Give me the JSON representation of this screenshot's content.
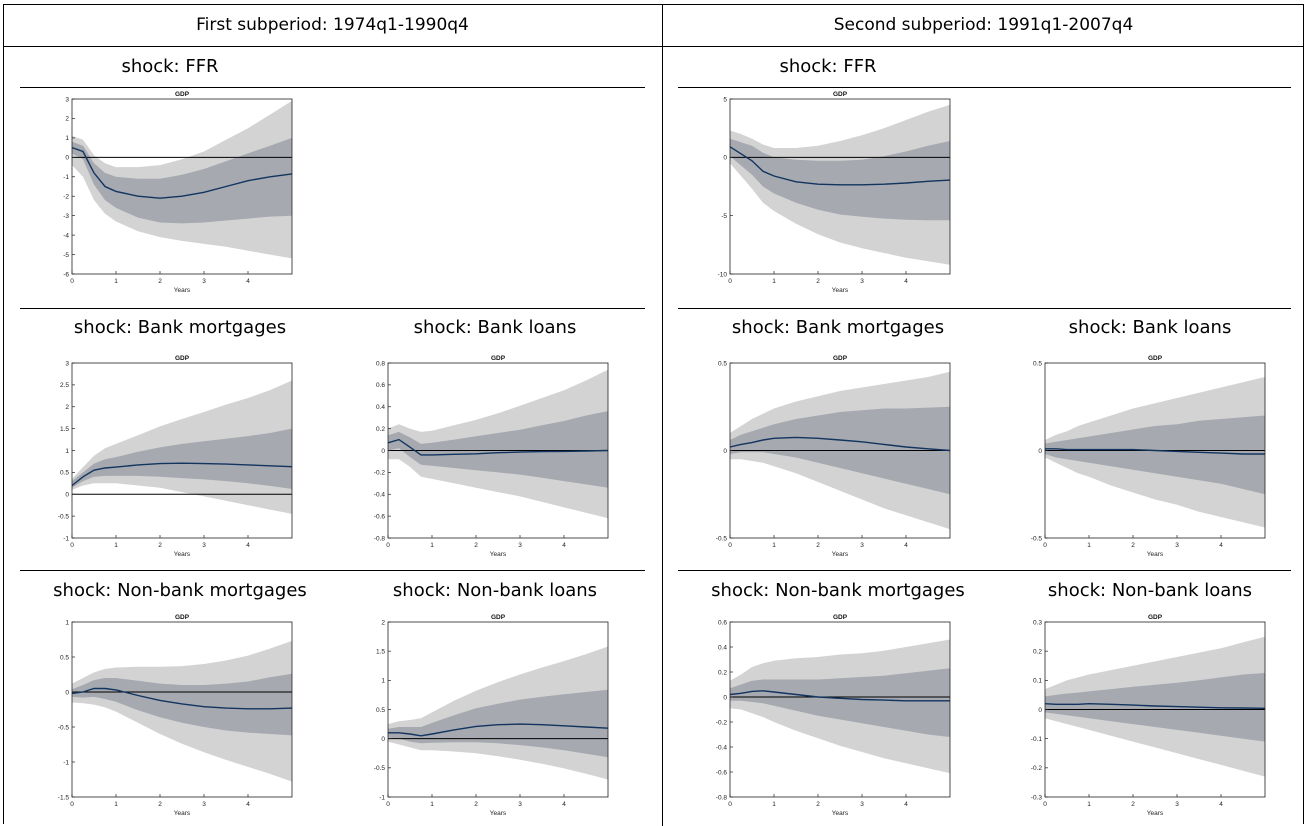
{
  "headers": {
    "left": "First subperiod: 1974q1-1990q4",
    "right": "Second subperiod: 1991q1-2007q4"
  },
  "colors": {
    "band_outer": "#d3d3d3",
    "band_inner": "#a6a9b0",
    "median_line": "#12345f",
    "zero_line": "#000000"
  },
  "chart_data": [
    {
      "id": "p1-ffr",
      "type": "area",
      "shock": "shock: FFR",
      "title": "GDP",
      "xlabel": "Years",
      "xlim": [
        0,
        5
      ],
      "xticks": [
        0,
        1,
        2,
        3,
        4
      ],
      "ylim": [
        -6,
        3
      ],
      "yticks": [
        3,
        2,
        1,
        0,
        -1,
        -2,
        -3,
        -4,
        -5,
        -6
      ],
      "zero": true,
      "x": [
        0,
        0.25,
        0.5,
        0.75,
        1,
        1.5,
        2,
        2.5,
        3,
        3.5,
        4,
        4.5,
        5
      ],
      "median": [
        0.5,
        0.3,
        -0.8,
        -1.5,
        -1.75,
        -2.0,
        -2.1,
        -2.0,
        -1.8,
        -1.5,
        -1.2,
        -1.0,
        -0.85
      ],
      "inner_low": [
        0.2,
        -0.1,
        -1.4,
        -2.2,
        -2.6,
        -3.1,
        -3.35,
        -3.4,
        -3.35,
        -3.25,
        -3.15,
        -3.05,
        -3.0
      ],
      "inner_high": [
        0.8,
        0.6,
        -0.3,
        -0.8,
        -1.0,
        -1.1,
        -1.1,
        -0.9,
        -0.6,
        -0.2,
        0.2,
        0.6,
        1.0
      ],
      "outer_low": [
        -0.4,
        -1.0,
        -2.2,
        -2.9,
        -3.3,
        -3.8,
        -4.1,
        -4.3,
        -4.45,
        -4.6,
        -4.8,
        -5.0,
        -5.2
      ],
      "outer_high": [
        1.1,
        0.9,
        0.1,
        -0.3,
        -0.5,
        -0.5,
        -0.4,
        -0.1,
        0.3,
        0.9,
        1.5,
        2.2,
        2.9
      ]
    },
    {
      "id": "p2-ffr",
      "type": "area",
      "shock": "shock: FFR",
      "title": "GDP",
      "xlabel": "Years",
      "xlim": [
        0,
        5
      ],
      "xticks": [
        0,
        1,
        2,
        3,
        4
      ],
      "ylim": [
        -10,
        5
      ],
      "yticks": [
        5,
        0,
        -5,
        -10
      ],
      "zero": true,
      "x": [
        0,
        0.25,
        0.5,
        0.75,
        1,
        1.5,
        2,
        2.5,
        3,
        3.5,
        4,
        4.5,
        5
      ],
      "median": [
        0.9,
        0.3,
        -0.3,
        -1.2,
        -1.6,
        -2.1,
        -2.3,
        -2.35,
        -2.35,
        -2.3,
        -2.2,
        -2.05,
        -1.95
      ],
      "inner_low": [
        0.1,
        -0.7,
        -1.5,
        -2.5,
        -3.1,
        -3.9,
        -4.5,
        -4.9,
        -5.1,
        -5.25,
        -5.35,
        -5.4,
        -5.4
      ],
      "inner_high": [
        1.6,
        1.3,
        1.0,
        0.4,
        0.0,
        -0.2,
        -0.3,
        -0.3,
        -0.2,
        0.1,
        0.5,
        1.0,
        1.4
      ],
      "outer_low": [
        -0.5,
        -1.6,
        -2.7,
        -3.9,
        -4.6,
        -5.7,
        -6.6,
        -7.3,
        -7.8,
        -8.2,
        -8.6,
        -8.9,
        -9.2
      ],
      "outer_high": [
        2.3,
        2.0,
        1.6,
        1.1,
        0.8,
        0.8,
        1.0,
        1.4,
        1.9,
        2.5,
        3.2,
        3.9,
        4.5
      ]
    },
    {
      "id": "p1-bm",
      "type": "area",
      "shock": "shock: Bank mortgages",
      "title": "GDP",
      "xlabel": "Years",
      "xlim": [
        0,
        5
      ],
      "xticks": [
        0,
        1,
        2,
        3,
        4
      ],
      "ylim": [
        -1,
        3
      ],
      "yticks": [
        3,
        2.5,
        2,
        1.5,
        1,
        0.5,
        0,
        -0.5,
        -1
      ],
      "zero": true,
      "x": [
        0,
        0.25,
        0.5,
        0.75,
        1,
        1.5,
        2,
        2.5,
        3,
        3.5,
        4,
        4.5,
        5
      ],
      "median": [
        0.2,
        0.4,
        0.55,
        0.6,
        0.62,
        0.67,
        0.7,
        0.71,
        0.7,
        0.69,
        0.67,
        0.65,
        0.63
      ],
      "inner_low": [
        0.15,
        0.3,
        0.4,
        0.42,
        0.42,
        0.42,
        0.4,
        0.37,
        0.34,
        0.3,
        0.25,
        0.19,
        0.12
      ],
      "inner_high": [
        0.3,
        0.5,
        0.7,
        0.8,
        0.85,
        0.97,
        1.07,
        1.15,
        1.21,
        1.27,
        1.33,
        1.4,
        1.5
      ],
      "outer_low": [
        0.1,
        0.2,
        0.25,
        0.25,
        0.25,
        0.2,
        0.15,
        0.05,
        -0.05,
        -0.15,
        -0.25,
        -0.35,
        -0.45
      ],
      "outer_high": [
        0.35,
        0.62,
        0.88,
        1.05,
        1.15,
        1.35,
        1.55,
        1.72,
        1.88,
        2.05,
        2.2,
        2.38,
        2.6
      ]
    },
    {
      "id": "p1-bl",
      "type": "area",
      "shock": "shock: Bank loans",
      "title": "GDP",
      "xlabel": "Years",
      "xlim": [
        0,
        5
      ],
      "xticks": [
        0,
        1,
        2,
        3,
        4
      ],
      "ylim": [
        -0.8,
        0.8
      ],
      "yticks": [
        0.8,
        0.6,
        0.4,
        0.2,
        0,
        -0.2,
        -0.4,
        -0.6,
        -0.8
      ],
      "zero": true,
      "x": [
        0,
        0.25,
        0.5,
        0.75,
        1,
        1.5,
        2,
        2.5,
        3,
        3.5,
        4,
        4.5,
        5
      ],
      "median": [
        0.07,
        0.1,
        0.03,
        -0.04,
        -0.04,
        -0.035,
        -0.03,
        -0.02,
        -0.015,
        -0.01,
        -0.008,
        -0.005,
        0.0
      ],
      "inner_low": [
        0.0,
        0.02,
        -0.06,
        -0.13,
        -0.14,
        -0.16,
        -0.18,
        -0.2,
        -0.22,
        -0.25,
        -0.28,
        -0.31,
        -0.34
      ],
      "inner_high": [
        0.14,
        0.17,
        0.12,
        0.06,
        0.07,
        0.1,
        0.13,
        0.16,
        0.19,
        0.23,
        0.27,
        0.32,
        0.36
      ],
      "outer_low": [
        -0.08,
        -0.08,
        -0.15,
        -0.24,
        -0.26,
        -0.3,
        -0.34,
        -0.38,
        -0.42,
        -0.47,
        -0.52,
        -0.57,
        -0.62
      ],
      "outer_high": [
        0.2,
        0.24,
        0.2,
        0.17,
        0.18,
        0.23,
        0.28,
        0.34,
        0.41,
        0.48,
        0.55,
        0.64,
        0.74
      ]
    },
    {
      "id": "p2-bm",
      "type": "area",
      "shock": "shock: Bank mortgages",
      "title": "GDP",
      "xlabel": "Years",
      "xlim": [
        0,
        5
      ],
      "xticks": [
        0,
        1,
        2,
        3,
        4
      ],
      "ylim": [
        -0.5,
        0.5
      ],
      "yticks": [
        0.5,
        0,
        -0.5
      ],
      "zero": true,
      "x": [
        0,
        0.25,
        0.5,
        0.75,
        1,
        1.5,
        2,
        2.5,
        3,
        3.5,
        4,
        4.5,
        5
      ],
      "median": [
        0.02,
        0.035,
        0.045,
        0.06,
        0.07,
        0.075,
        0.07,
        0.06,
        0.05,
        0.035,
        0.02,
        0.01,
        0.0
      ],
      "inner_low": [
        -0.02,
        -0.01,
        -0.01,
        -0.01,
        -0.02,
        -0.04,
        -0.07,
        -0.1,
        -0.13,
        -0.16,
        -0.19,
        -0.22,
        -0.25
      ],
      "inner_high": [
        0.06,
        0.09,
        0.11,
        0.13,
        0.15,
        0.18,
        0.2,
        0.22,
        0.23,
        0.24,
        0.24,
        0.245,
        0.25
      ],
      "outer_low": [
        -0.05,
        -0.05,
        -0.06,
        -0.07,
        -0.09,
        -0.13,
        -0.18,
        -0.23,
        -0.28,
        -0.33,
        -0.37,
        -0.41,
        -0.45
      ],
      "outer_high": [
        0.1,
        0.14,
        0.18,
        0.21,
        0.24,
        0.28,
        0.31,
        0.34,
        0.36,
        0.38,
        0.4,
        0.42,
        0.45
      ]
    },
    {
      "id": "p2-bl",
      "type": "area",
      "shock": "shock: Bank loans",
      "title": "GDP",
      "xlabel": "Years",
      "xlim": [
        0,
        5
      ],
      "xticks": [
        0,
        1,
        2,
        3,
        4
      ],
      "ylim": [
        -0.5,
        0.5
      ],
      "yticks": [
        0.5,
        0,
        -0.5
      ],
      "zero": true,
      "x": [
        0,
        0.25,
        0.5,
        0.75,
        1,
        1.5,
        2,
        2.5,
        3,
        3.5,
        4,
        4.5,
        5
      ],
      "median": [
        0.01,
        0.01,
        0.005,
        0.005,
        0.005,
        0.005,
        0.005,
        0.0,
        -0.005,
        -0.01,
        -0.015,
        -0.02,
        -0.02
      ],
      "inner_low": [
        -0.02,
        -0.04,
        -0.05,
        -0.06,
        -0.07,
        -0.09,
        -0.11,
        -0.13,
        -0.15,
        -0.17,
        -0.19,
        -0.22,
        -0.25
      ],
      "inner_high": [
        0.04,
        0.05,
        0.06,
        0.07,
        0.08,
        0.1,
        0.12,
        0.14,
        0.15,
        0.17,
        0.18,
        0.19,
        0.2
      ],
      "outer_low": [
        -0.04,
        -0.07,
        -0.1,
        -0.13,
        -0.15,
        -0.2,
        -0.24,
        -0.28,
        -0.31,
        -0.35,
        -0.38,
        -0.41,
        -0.44
      ],
      "outer_high": [
        0.06,
        0.09,
        0.11,
        0.14,
        0.16,
        0.2,
        0.24,
        0.27,
        0.3,
        0.33,
        0.36,
        0.39,
        0.42
      ]
    },
    {
      "id": "p1-nbm",
      "type": "area",
      "shock": "shock: Non-bank mortgages",
      "title": "GDP",
      "xlabel": "Years",
      "xlim": [
        0,
        5
      ],
      "xticks": [
        0,
        1,
        2,
        3,
        4
      ],
      "ylim": [
        -1.5,
        1
      ],
      "yticks": [
        1,
        0.5,
        0,
        -0.5,
        -1,
        -1.5
      ],
      "zero": true,
      "x": [
        0,
        0.25,
        0.5,
        0.75,
        1,
        1.5,
        2,
        2.5,
        3,
        3.5,
        4,
        4.5,
        5
      ],
      "median": [
        -0.02,
        0.0,
        0.05,
        0.05,
        0.03,
        -0.05,
        -0.12,
        -0.17,
        -0.21,
        -0.23,
        -0.24,
        -0.24,
        -0.23
      ],
      "inner_low": [
        -0.07,
        -0.08,
        -0.07,
        -0.1,
        -0.14,
        -0.26,
        -0.36,
        -0.44,
        -0.5,
        -0.55,
        -0.58,
        -0.6,
        -0.62
      ],
      "inner_high": [
        0.04,
        0.1,
        0.17,
        0.2,
        0.2,
        0.16,
        0.12,
        0.1,
        0.1,
        0.12,
        0.15,
        0.21,
        0.26
      ],
      "outer_low": [
        -0.15,
        -0.16,
        -0.18,
        -0.22,
        -0.28,
        -0.44,
        -0.6,
        -0.74,
        -0.86,
        -0.97,
        -1.07,
        -1.17,
        -1.28
      ],
      "outer_high": [
        0.12,
        0.2,
        0.28,
        0.33,
        0.35,
        0.36,
        0.36,
        0.37,
        0.4,
        0.45,
        0.52,
        0.62,
        0.73
      ]
    },
    {
      "id": "p1-nbl",
      "type": "area",
      "shock": "shock: Non-bank loans",
      "title": "GDP",
      "xlabel": "Years",
      "xlim": [
        0,
        5
      ],
      "xticks": [
        0,
        1,
        2,
        3,
        4
      ],
      "ylim": [
        -1,
        2
      ],
      "yticks": [
        2,
        1.5,
        1,
        0.5,
        0,
        -0.5,
        -1
      ],
      "zero": true,
      "x": [
        0,
        0.25,
        0.5,
        0.75,
        1,
        1.5,
        2,
        2.5,
        3,
        3.5,
        4,
        4.5,
        5
      ],
      "median": [
        0.1,
        0.1,
        0.08,
        0.05,
        0.08,
        0.15,
        0.21,
        0.24,
        0.25,
        0.24,
        0.22,
        0.2,
        0.18
      ],
      "inner_low": [
        0.02,
        0.0,
        -0.05,
        -0.08,
        -0.07,
        -0.06,
        -0.06,
        -0.08,
        -0.11,
        -0.15,
        -0.2,
        -0.26,
        -0.32
      ],
      "inner_high": [
        0.17,
        0.2,
        0.2,
        0.2,
        0.27,
        0.4,
        0.52,
        0.6,
        0.67,
        0.72,
        0.76,
        0.8,
        0.84
      ],
      "outer_low": [
        -0.05,
        -0.1,
        -0.15,
        -0.2,
        -0.2,
        -0.22,
        -0.25,
        -0.3,
        -0.36,
        -0.43,
        -0.51,
        -0.6,
        -0.7
      ],
      "outer_high": [
        0.25,
        0.3,
        0.32,
        0.35,
        0.45,
        0.65,
        0.82,
        0.97,
        1.1,
        1.22,
        1.33,
        1.45,
        1.58
      ]
    },
    {
      "id": "p2-nbm",
      "type": "area",
      "shock": "shock: Non-bank mortgages",
      "title": "GDP",
      "xlabel": "Years",
      "xlim": [
        0,
        5
      ],
      "xticks": [
        0,
        1,
        2,
        3,
        4
      ],
      "ylim": [
        -0.8,
        0.6
      ],
      "yticks": [
        0.6,
        0.4,
        0.2,
        0,
        -0.2,
        -0.4,
        -0.6,
        -0.8
      ],
      "zero": true,
      "x": [
        0,
        0.25,
        0.5,
        0.75,
        1,
        1.5,
        2,
        2.5,
        3,
        3.5,
        4,
        4.5,
        5
      ],
      "median": [
        0.02,
        0.03,
        0.045,
        0.05,
        0.04,
        0.02,
        0.0,
        -0.01,
        -0.02,
        -0.025,
        -0.03,
        -0.03,
        -0.03
      ],
      "inner_low": [
        -0.03,
        -0.03,
        -0.04,
        -0.05,
        -0.07,
        -0.11,
        -0.15,
        -0.18,
        -0.21,
        -0.24,
        -0.27,
        -0.3,
        -0.32
      ],
      "inner_high": [
        0.07,
        0.1,
        0.13,
        0.14,
        0.14,
        0.14,
        0.14,
        0.15,
        0.16,
        0.17,
        0.19,
        0.21,
        0.23
      ],
      "outer_low": [
        -0.09,
        -0.1,
        -0.13,
        -0.16,
        -0.2,
        -0.27,
        -0.33,
        -0.39,
        -0.44,
        -0.49,
        -0.53,
        -0.57,
        -0.61
      ],
      "outer_high": [
        0.13,
        0.18,
        0.24,
        0.27,
        0.29,
        0.31,
        0.32,
        0.34,
        0.35,
        0.37,
        0.4,
        0.43,
        0.46
      ]
    },
    {
      "id": "p2-nbl",
      "type": "area",
      "shock": "shock: Non-bank loans",
      "title": "GDP",
      "xlabel": "Years",
      "xlim": [
        0,
        5
      ],
      "xticks": [
        0,
        1,
        2,
        3,
        4
      ],
      "ylim": [
        -0.3,
        0.3
      ],
      "yticks": [
        0.3,
        0.2,
        0.1,
        0,
        -0.1,
        -0.2,
        -0.3
      ],
      "zero": true,
      "x": [
        0,
        0.25,
        0.5,
        0.75,
        1,
        1.5,
        2,
        2.5,
        3,
        3.5,
        4,
        4.5,
        5
      ],
      "median": [
        0.02,
        0.018,
        0.018,
        0.018,
        0.02,
        0.018,
        0.015,
        0.012,
        0.01,
        0.008,
        0.006,
        0.005,
        0.004
      ],
      "inner_low": [
        -0.01,
        -0.015,
        -0.02,
        -0.025,
        -0.03,
        -0.04,
        -0.05,
        -0.06,
        -0.07,
        -0.08,
        -0.09,
        -0.1,
        -0.11
      ],
      "inner_high": [
        0.045,
        0.05,
        0.055,
        0.058,
        0.062,
        0.07,
        0.078,
        0.085,
        0.092,
        0.1,
        0.11,
        0.12,
        0.125
      ],
      "outer_low": [
        -0.03,
        -0.04,
        -0.05,
        -0.06,
        -0.07,
        -0.09,
        -0.11,
        -0.13,
        -0.15,
        -0.17,
        -0.19,
        -0.21,
        -0.23
      ],
      "outer_high": [
        0.07,
        0.085,
        0.1,
        0.11,
        0.12,
        0.135,
        0.15,
        0.165,
        0.18,
        0.195,
        0.21,
        0.23,
        0.25
      ]
    }
  ]
}
